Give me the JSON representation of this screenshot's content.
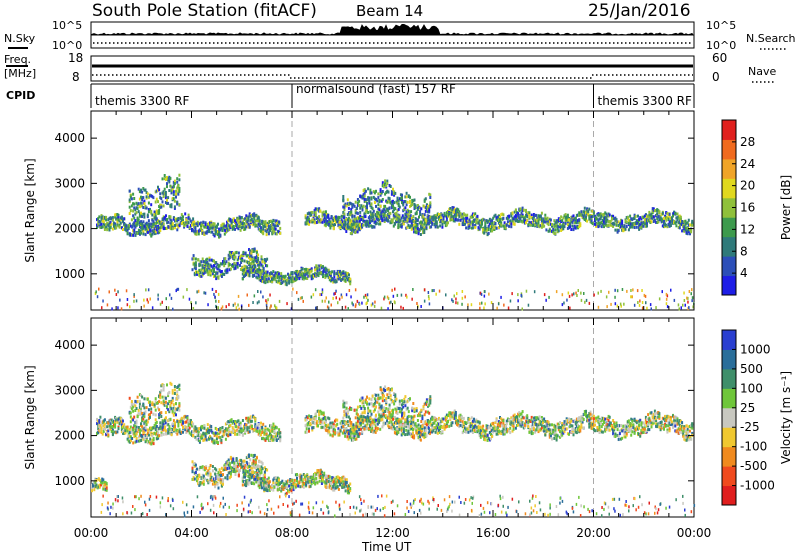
{
  "header": {
    "station": "South Pole Station (fitACF)",
    "beam": "Beam 14",
    "date": "25/Jan/2016"
  },
  "status_rows": {
    "nsky_label": "N.Sky",
    "nsearch_label": "N.Search",
    "freq_label_top": "Freq.",
    "freq_label_bottom": "[MHz]",
    "nave_label": "Nave",
    "cpid_label": "CPID",
    "left_ticks_noise": [
      "10^5",
      "10^0"
    ],
    "right_ticks_noise": [
      "10^5",
      "10^0"
    ],
    "left_ticks_freq": [
      "18",
      "8"
    ],
    "right_ticks_freq": [
      "60",
      "0"
    ]
  },
  "cpid_segments": [
    {
      "label": "themis 3300 RF",
      "start_hr": 0,
      "end_hr": 8
    },
    {
      "label": "normalsound (fast) 157 RF",
      "start_hr": 8,
      "end_hr": 20
    },
    {
      "label": "themis 3300 RF",
      "start_hr": 20,
      "end_hr": 24
    }
  ],
  "chart_data": [
    {
      "type": "heatmap",
      "title": "",
      "xlabel": "Time UT",
      "ylabel": "Slant Range [km]",
      "xlim": [
        0,
        24
      ],
      "ylim": [
        200,
        4600
      ],
      "x_ticks": [
        "00:00",
        "04:00",
        "08:00",
        "12:00",
        "16:00",
        "20:00",
        "00:00"
      ],
      "y_ticks": [
        "1000",
        "2000",
        "3000",
        "4000"
      ],
      "colorbar": {
        "label": "Power [dB]",
        "ticks": [
          "4",
          "8",
          "12",
          "16",
          "20",
          "24",
          "28"
        ],
        "colors": [
          "#1e1ee6",
          "#2c4fb8",
          "#2f7a7a",
          "#3d9a4d",
          "#8fc03a",
          "#e0d81e",
          "#f0a428",
          "#f06a1e",
          "#e0201e"
        ]
      },
      "echo_bands": [
        {
          "x": [
            0.2,
            7.5
          ],
          "range_center": 2100,
          "range_half_width": 150
        },
        {
          "x": [
            1.5,
            3.5
          ],
          "range_center": 2700,
          "range_half_width": 350
        },
        {
          "x": [
            4.0,
            7.0
          ],
          "range_center": 1250,
          "range_half_width": 200
        },
        {
          "x": [
            6.0,
            10.3
          ],
          "range_center": 1000,
          "range_half_width": 120
        },
        {
          "x": [
            8.5,
            23.9
          ],
          "range_center": 2200,
          "range_half_width": 160
        },
        {
          "x": [
            10.0,
            13.5
          ],
          "range_center": 2550,
          "range_half_width": 300
        }
      ]
    },
    {
      "type": "heatmap",
      "title": "",
      "xlabel": "Time UT",
      "ylabel": "Slant Range [km]",
      "xlim": [
        0,
        24
      ],
      "ylim": [
        200,
        4600
      ],
      "x_ticks": [
        "00:00",
        "04:00",
        "08:00",
        "12:00",
        "16:00",
        "20:00",
        "00:00"
      ],
      "y_ticks": [
        "1000",
        "2000",
        "3000",
        "4000"
      ],
      "colorbar": {
        "label": "Velocity [m s⁻¹]",
        "ticks": [
          "1000",
          "500",
          "100",
          "25",
          "-25",
          "-100",
          "-500",
          "-1000"
        ],
        "colors": [
          "#2a3fd0",
          "#2a6e9a",
          "#3f8f6a",
          "#6fc63a",
          "#c8c8c0",
          "#f0c830",
          "#f08a1e",
          "#f04a1e",
          "#e01e1e"
        ]
      },
      "echo_bands": [
        {
          "x": [
            0.2,
            7.5
          ],
          "range_center": 2150,
          "range_half_width": 180
        },
        {
          "x": [
            1.5,
            3.5
          ],
          "range_center": 2700,
          "range_half_width": 350
        },
        {
          "x": [
            0.0,
            0.6
          ],
          "range_center": 900,
          "range_half_width": 120
        },
        {
          "x": [
            4.0,
            7.0
          ],
          "range_center": 1250,
          "range_half_width": 220
        },
        {
          "x": [
            6.0,
            10.3
          ],
          "range_center": 1000,
          "range_half_width": 150
        },
        {
          "x": [
            8.5,
            23.9
          ],
          "range_center": 2250,
          "range_half_width": 180
        },
        {
          "x": [
            10.0,
            13.5
          ],
          "range_center": 2600,
          "range_half_width": 320
        }
      ]
    }
  ]
}
